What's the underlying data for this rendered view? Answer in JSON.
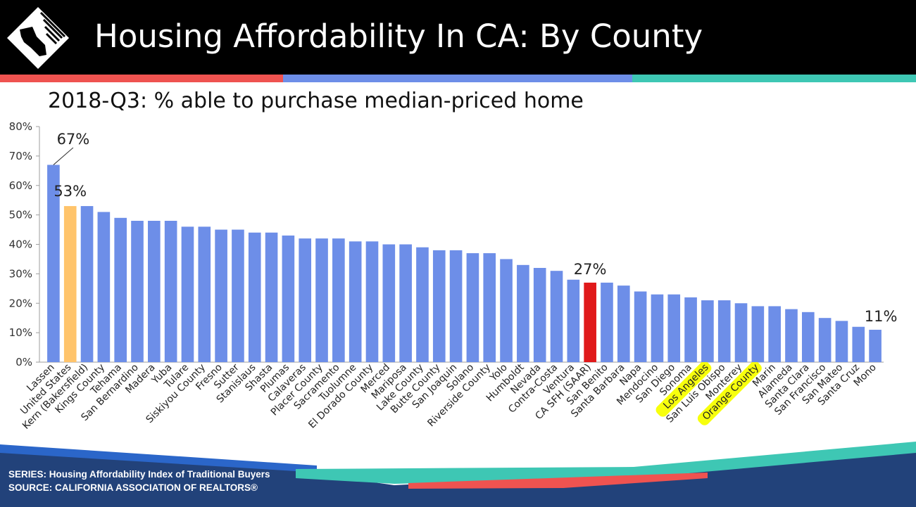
{
  "header": {
    "title": "Housing Affordability In CA: By County",
    "logo_icon": "california-realtors-logo-icon"
  },
  "colors": {
    "header_bg": "#000000",
    "stripe_red": "#ef5350",
    "stripe_blue": "#6d8ee8",
    "stripe_teal": "#3ec7b4",
    "bar_default": "#6d8ee8",
    "bar_us": "#ffc46b",
    "bar_ca": "#e0191a",
    "highlight": "#f7ff00",
    "footer_navy": "#22427a",
    "footer_blue": "#2b66c9",
    "footer_teal": "#3ec7b4",
    "footer_red": "#ef5350"
  },
  "chart_data": {
    "type": "bar",
    "title": "2018-Q3: % able to purchase median-priced home",
    "categories": [
      "Lassen",
      "United States",
      "Kern (Bakersfield)",
      "Kings County",
      "Tehama",
      "San Bernardino",
      "Madera",
      "Yuba",
      "Tulare",
      "Siskiyou County",
      "Fresno",
      "Sutter",
      "Stanislaus",
      "Shasta",
      "Plumas",
      "Calaveras",
      "Placer County",
      "Sacramento",
      "Tuolumne",
      "El Dorado County",
      "Merced",
      "Mariposa",
      "Lake County",
      "Butte County",
      "San Joaquin",
      "Solano",
      "Riverside County",
      "Yolo",
      "Humboldt",
      "Nevada",
      "Contra-Costa",
      "Ventura",
      "CA SFH (SAAR)",
      "San Benito",
      "Santa Barbara",
      "Napa",
      "Mendocino",
      "San Diego",
      "Sonoma",
      "Los Angeles",
      "San Luis Obispo",
      "Monterey",
      "Orange County",
      "Marin",
      "Alameda",
      "Santa Clara",
      "San Francisco",
      "San Mateo",
      "Santa Cruz",
      "Mono"
    ],
    "values": [
      67,
      53,
      53,
      51,
      49,
      48,
      48,
      48,
      46,
      46,
      45,
      45,
      44,
      44,
      43,
      42,
      42,
      42,
      41,
      41,
      40,
      40,
      39,
      38,
      38,
      37,
      37,
      35,
      33,
      32,
      31,
      28,
      27,
      27,
      26,
      24,
      23,
      23,
      22,
      21,
      21,
      20,
      19,
      19,
      18,
      17,
      15,
      14,
      12,
      11
    ],
    "highlighted_bars": {
      "United States": "bar_us",
      "CA SFH (SAAR)": "bar_ca"
    },
    "highlighted_labels": [
      "Los Angeles",
      "Orange County"
    ],
    "annotations": [
      {
        "category": "Lassen",
        "text": "67%"
      },
      {
        "category": "United States",
        "text": "53%"
      },
      {
        "category": "CA SFH (SAAR)",
        "text": "27%"
      },
      {
        "category": "Mono",
        "text": "11%"
      }
    ],
    "ylim": [
      0,
      80
    ],
    "yticks": [
      "0%",
      "10%",
      "20%",
      "30%",
      "40%",
      "50%",
      "60%",
      "70%",
      "80%"
    ],
    "grid": false,
    "legend": "none"
  },
  "footer": {
    "series_line": "SERIES: Housing Affordability Index of Traditional Buyers",
    "source_line": "SOURCE:  CALIFORNIA ASSOCIATION OF REALTORS®"
  }
}
